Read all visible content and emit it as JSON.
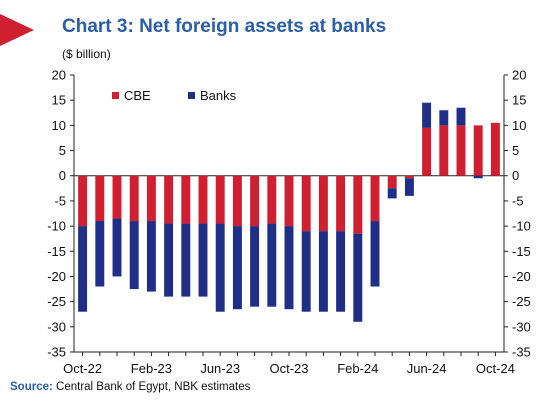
{
  "colors": {
    "cbe": "#d11f32",
    "banks": "#1f2e86",
    "title": "#2a5ea8",
    "flag": "#d11f32"
  },
  "header": {
    "title": "Chart 3: Net foreign assets at banks",
    "unit": "($ billion)"
  },
  "source": {
    "label": "Source:",
    "text": "Central Bank of Egypt, NBK estimates"
  },
  "chart_data": {
    "type": "bar",
    "stacked": true,
    "title": "Chart 3: Net foreign assets at banks",
    "ylabel": "($ billion)",
    "ylim": [
      -35,
      20
    ],
    "yticks": [
      20,
      15,
      10,
      5,
      0,
      -5,
      -10,
      -15,
      -20,
      -25,
      -30,
      -35
    ],
    "right_axis": true,
    "grid": false,
    "legend_position": "top-left",
    "x_tick_labels": [
      "Oct-22",
      "Feb-23",
      "Jun-23",
      "Oct-23",
      "Feb-24",
      "Jun-24",
      "Oct-24"
    ],
    "categories": [
      "Oct-22",
      "Nov-22",
      "Dec-22",
      "Jan-23",
      "Feb-23",
      "Mar-23",
      "Apr-23",
      "May-23",
      "Jun-23",
      "Jul-23",
      "Aug-23",
      "Sep-23",
      "Oct-23",
      "Nov-23",
      "Dec-23",
      "Jan-24",
      "Feb-24",
      "Mar-24",
      "Apr-24",
      "May-24",
      "Jun-24",
      "Jul-24",
      "Aug-24",
      "Sep-24",
      "Oct-24"
    ],
    "series": [
      {
        "name": "CBE",
        "values": [
          -10,
          -9,
          -8.5,
          -9,
          -9,
          -9.5,
          -9.5,
          -9.5,
          -9.5,
          -10,
          -10,
          -9.5,
          -10,
          -11,
          -11,
          -11,
          -11.5,
          -9,
          -2.5,
          -0.5,
          9.5,
          10,
          10,
          10,
          10.5
        ]
      },
      {
        "name": "Banks",
        "values": [
          -17,
          -13,
          -11.5,
          -13.5,
          -14,
          -14.5,
          -14.5,
          -14.5,
          -17.5,
          -16.5,
          -16,
          -16.5,
          -16.5,
          -16,
          -16,
          -16,
          -17.5,
          -13,
          -2,
          -3.5,
          5,
          3,
          3.5,
          -0.5,
          0
        ]
      }
    ]
  }
}
